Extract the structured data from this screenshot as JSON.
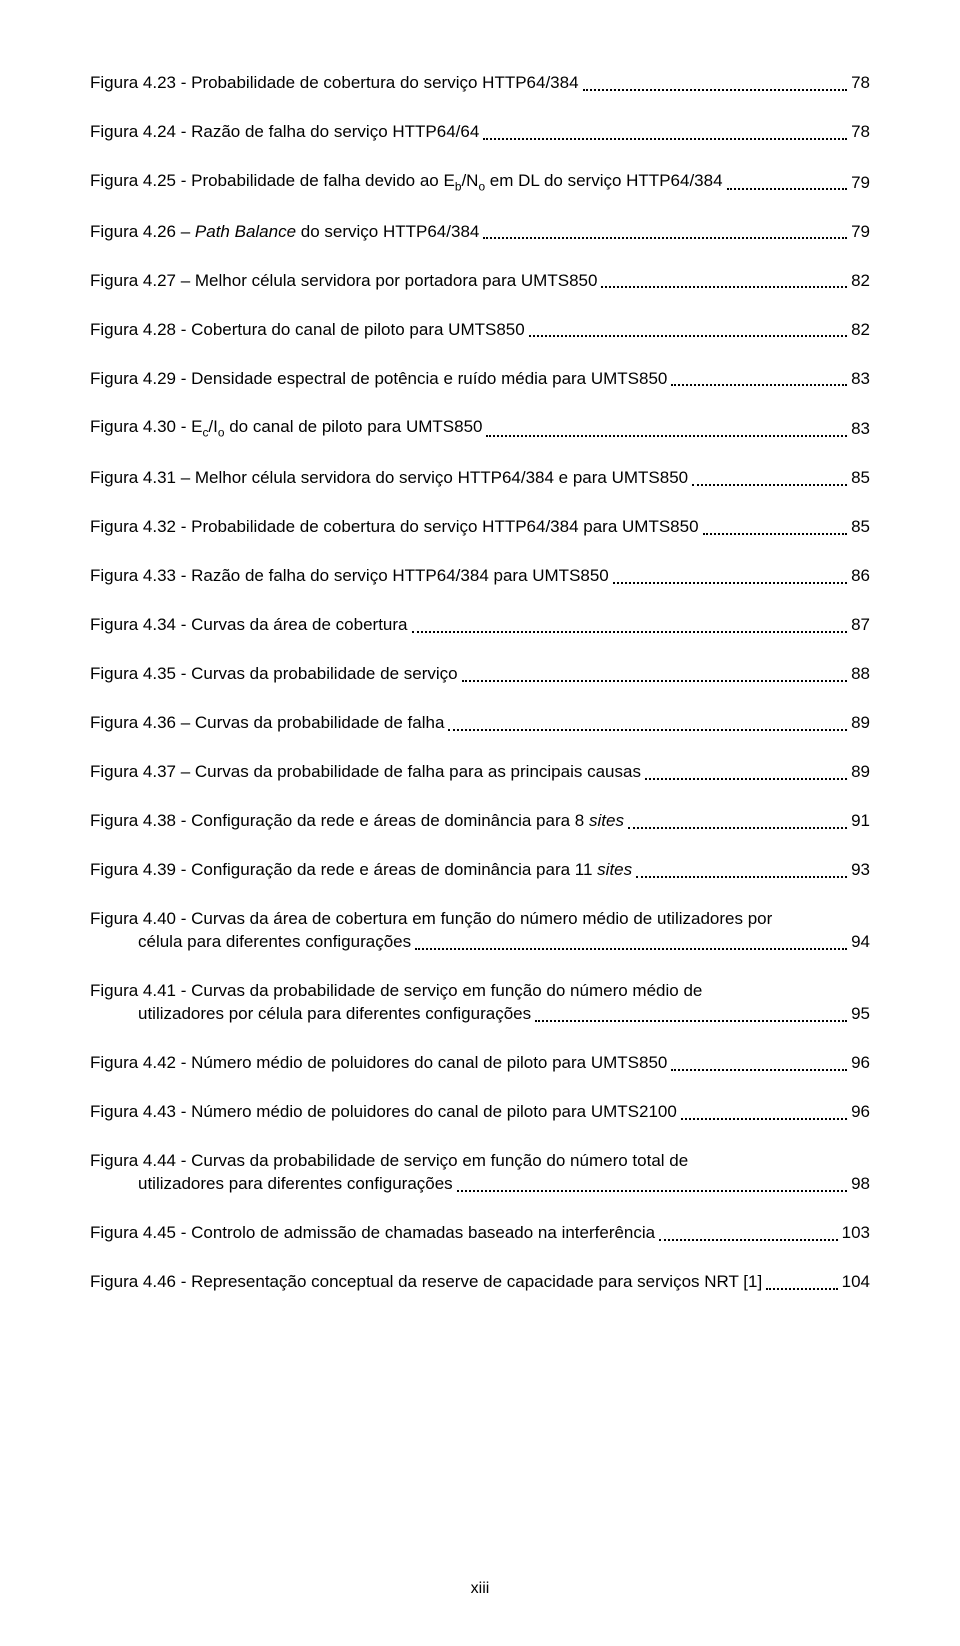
{
  "page_number_label": "xiii",
  "entries": [
    {
      "label": "Figura 4.23 - Probabilidade de cobertura do serviço HTTP64/384",
      "page": "78"
    },
    {
      "label": "Figura 4.24 - Razão de falha do serviço HTTP64/64",
      "page": "78"
    },
    {
      "label_html": "Figura 4.25 - Probabilidade de falha devido ao E<sub>b</sub>/N<sub>o</sub> em DL do serviço HTTP64/384",
      "page": "79"
    },
    {
      "label_html": "Figura 4.26 – <span class=\"italic\">Path Balance</span> do serviço HTTP64/384",
      "page": "79"
    },
    {
      "label": "Figura 4.27 – Melhor célula servidora por portadora para UMTS850",
      "page": "82"
    },
    {
      "label": "Figura 4.28 - Cobertura do canal de piloto para UMTS850",
      "page": "82"
    },
    {
      "label": "Figura 4.29 - Densidade espectral de potência e ruído média para UMTS850",
      "page": "83"
    },
    {
      "label_html": "Figura 4.30 - E<sub>c</sub>/I<sub>o</sub> do canal de piloto para UMTS850",
      "page": "83"
    },
    {
      "label": "Figura 4.31 – Melhor célula servidora do serviço HTTP64/384 e para UMTS850",
      "page": "85"
    },
    {
      "label": "Figura 4.32 - Probabilidade de cobertura do serviço HTTP64/384 para UMTS850",
      "page": "85"
    },
    {
      "label": "Figura 4.33 - Razão de falha do serviço HTTP64/384 para UMTS850",
      "page": "86"
    },
    {
      "label": "Figura 4.34 - Curvas da área de cobertura",
      "page": "87"
    },
    {
      "label": "Figura 4.35 - Curvas da probabilidade de serviço",
      "page": "88"
    },
    {
      "label": "Figura 4.36 – Curvas da probabilidade de falha",
      "page": "89"
    },
    {
      "label": "Figura 4.37 – Curvas da probabilidade de falha para as principais causas",
      "page": "89"
    },
    {
      "label_html": "Figura 4.38 - Configuração da rede e áreas de dominância para 8 <span class=\"italic\">sites</span>",
      "page": "91"
    },
    {
      "label_html": "Figura 4.39 - Configuração da rede e áreas de dominância para 11 <span class=\"italic\">sites</span>",
      "page": "93"
    },
    {
      "wrap": true,
      "line1": "Figura 4.40 - Curvas da área de cobertura em função do número médio de utilizadores por",
      "line2": "célula para diferentes configurações",
      "page": "94"
    },
    {
      "wrap": true,
      "line1": "Figura 4.41 - Curvas da probabilidade de serviço em função do número médio de",
      "line2": "utilizadores por célula para diferentes configurações",
      "page": "95"
    },
    {
      "label": "Figura 4.42 - Número médio de poluidores do canal de piloto para UMTS850",
      "page": "96"
    },
    {
      "label": "Figura 4.43 - Número médio de poluidores do canal de piloto para UMTS2100",
      "page": "96"
    },
    {
      "wrap": true,
      "line1": "Figura 4.44 - Curvas da probabilidade de serviço em função do número total de",
      "line2": "utilizadores para diferentes configurações",
      "page": "98"
    },
    {
      "label": "Figura 4.45 - Controlo de admissão de chamadas baseado na interferência",
      "page": "103"
    },
    {
      "label": "Figura 4.46 - Representação conceptual da reserve de capacidade para serviços NRT [1]",
      "page": "104"
    }
  ]
}
